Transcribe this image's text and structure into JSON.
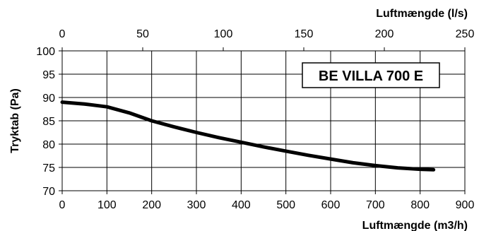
{
  "chart_data": {
    "type": "line",
    "title": "BE VILLA 700 E",
    "xlabel": "Luftmængde (m3/h)",
    "x2label": "Luftmængde (l/s)",
    "ylabel": "Tryktab (Pa)",
    "xlim": [
      0,
      900
    ],
    "x2lim": [
      0,
      250
    ],
    "ylim": [
      70,
      100
    ],
    "xticks": [
      "0",
      "100",
      "200",
      "300",
      "400",
      "500",
      "600",
      "700",
      "800",
      "900"
    ],
    "x2ticks": [
      "0",
      "50",
      "100",
      "150",
      "200",
      "250"
    ],
    "yticks": [
      "70",
      "75",
      "80",
      "85",
      "90",
      "95",
      "100"
    ],
    "grid": true,
    "series": [
      {
        "x": [
          0,
          50,
          100,
          150,
          200,
          250,
          300,
          350,
          400,
          450,
          500,
          550,
          600,
          650,
          700,
          750,
          800,
          830
        ],
        "y": [
          89.0,
          88.6,
          88.0,
          86.7,
          85.0,
          83.7,
          82.5,
          81.4,
          80.4,
          79.4,
          78.5,
          77.6,
          76.8,
          76.0,
          75.4,
          74.9,
          74.6,
          74.5
        ],
        "color": "#000000"
      }
    ]
  }
}
